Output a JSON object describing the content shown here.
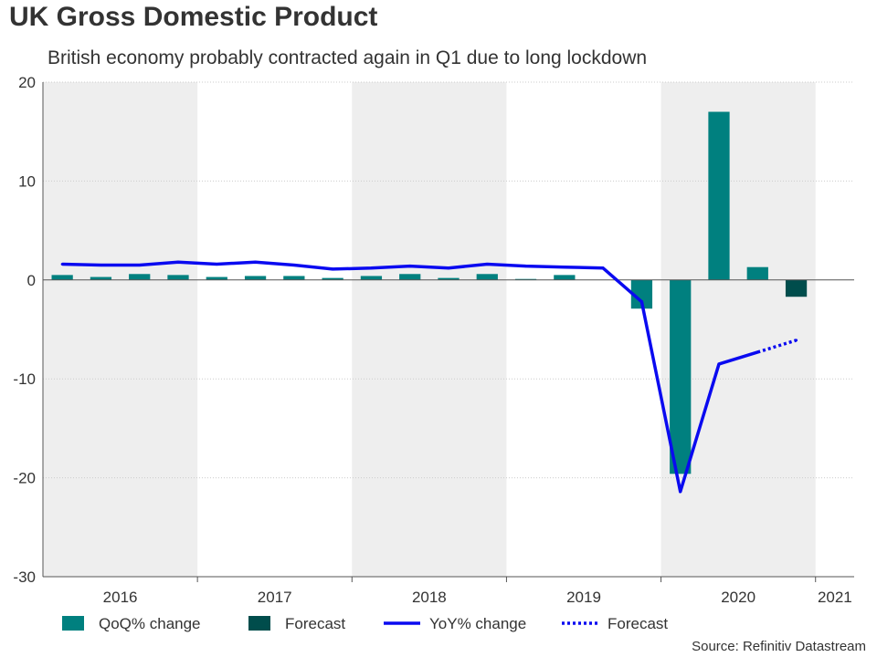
{
  "title": "UK Gross Domestic Product",
  "subtitle": "British economy probably contracted again in Q1 due to long lockdown",
  "source": "Source: Refinitiv Datastream",
  "colors": {
    "qoq": "#00807f",
    "qoq_forecast": "#004d4c",
    "yoy": "#0a0af0",
    "shade": "#eeeeee",
    "grid": "#cccccc"
  },
  "chart_data": {
    "type": "bar",
    "title": "UK Gross Domestic Product",
    "xlabel": "",
    "ylabel": "",
    "ylim": [
      -30,
      20
    ],
    "yticks": [
      20,
      10,
      0,
      -10,
      -20,
      -30
    ],
    "ytick_labels": [
      "20",
      "10",
      "0",
      "-10",
      "-20",
      "-30"
    ],
    "years": [
      "2016",
      "2017",
      "2018",
      "2019",
      "2020",
      "2021"
    ],
    "year_quarter_counts": [
      4,
      4,
      4,
      4,
      4,
      1
    ],
    "shaded_years": [
      "2016",
      "2018",
      "2020"
    ],
    "categories": [
      "2016Q1",
      "2016Q2",
      "2016Q3",
      "2016Q4",
      "2017Q1",
      "2017Q2",
      "2017Q3",
      "2017Q4",
      "2018Q1",
      "2018Q2",
      "2018Q3",
      "2018Q4",
      "2019Q1",
      "2019Q2",
      "2019Q3",
      "2019Q4",
      "2020Q1",
      "2020Q2",
      "2020Q3",
      "2020Q4",
      "2021Q1"
    ],
    "series": [
      {
        "name": "QoQ% change",
        "kind": "bar",
        "values": [
          0.5,
          0.3,
          0.6,
          0.5,
          0.3,
          0.4,
          0.4,
          0.2,
          0.4,
          0.6,
          0.2,
          0.6,
          0.1,
          0.5,
          0.0,
          -2.9,
          -19.6,
          17.0,
          1.3,
          null,
          null
        ]
      },
      {
        "name": "Forecast",
        "kind": "bar",
        "values": [
          null,
          null,
          null,
          null,
          null,
          null,
          null,
          null,
          null,
          null,
          null,
          null,
          null,
          null,
          null,
          null,
          null,
          null,
          null,
          -1.7,
          null
        ]
      },
      {
        "name": "YoY% change",
        "kind": "line",
        "values": [
          1.6,
          1.5,
          1.5,
          1.8,
          1.6,
          1.8,
          1.5,
          1.1,
          1.2,
          1.4,
          1.2,
          1.6,
          1.4,
          1.3,
          1.2,
          -2.2,
          -21.4,
          -8.5,
          -7.3,
          null,
          null
        ]
      },
      {
        "name": "Forecast",
        "kind": "line-dotted",
        "values": [
          null,
          null,
          null,
          null,
          null,
          null,
          null,
          null,
          null,
          null,
          null,
          null,
          null,
          null,
          null,
          null,
          null,
          null,
          -7.3,
          -6.1,
          null
        ]
      }
    ],
    "legend_position": "bottom-left"
  }
}
